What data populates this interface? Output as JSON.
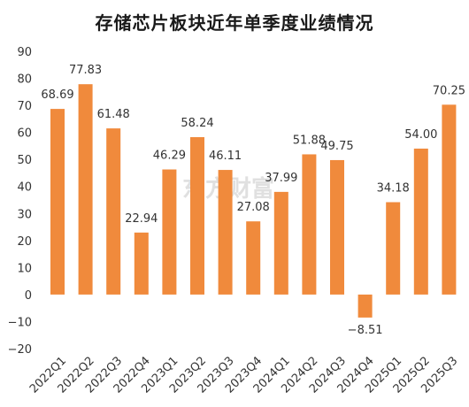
{
  "chart_data": {
    "type": "bar",
    "title": "存储芯片板块近年单季度业绩情况",
    "categories": [
      "2022Q1",
      "2022Q2",
      "2022Q3",
      "2022Q4",
      "2023Q1",
      "2023Q2",
      "2023Q3",
      "2023Q4",
      "2024Q1",
      "2024Q2",
      "2024Q3",
      "2024Q4",
      "2025Q1",
      "2025Q2",
      "2025Q3"
    ],
    "values": [
      68.69,
      77.83,
      61.48,
      22.94,
      46.29,
      58.24,
      46.11,
      27.08,
      37.99,
      51.88,
      49.75,
      -8.51,
      34.18,
      54.0,
      70.25
    ],
    "data_labels": [
      "68.69",
      "77.83",
      "61.48",
      "22.94",
      "46.29",
      "58.24",
      "46.11",
      "27.08",
      "37.99",
      "51.88",
      "49.75",
      "−8.51",
      "34.18",
      "54.00",
      "70.25"
    ],
    "ylim": [
      -20,
      90
    ],
    "yticks": [
      -20,
      -10,
      0,
      10,
      20,
      30,
      40,
      50,
      60,
      70,
      80,
      90
    ],
    "ytick_labels": [
      "−20",
      "−10",
      "0",
      "10",
      "20",
      "30",
      "40",
      "50",
      "60",
      "70",
      "80",
      "90"
    ],
    "xlabel": "",
    "ylabel": "",
    "bar_color": "#f08a3c",
    "grid": false,
    "legend": "none"
  },
  "watermark": "东方财富"
}
